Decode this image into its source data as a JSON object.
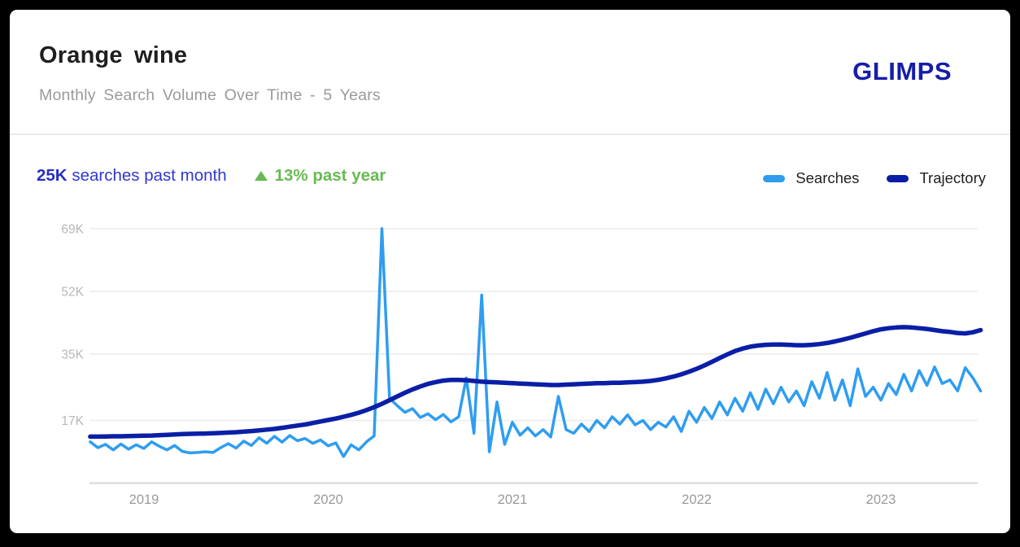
{
  "header": {
    "title": "Orange wine",
    "subtitle": "Monthly Search Volume Over Time - 5 Years",
    "brand": "GLIMPS",
    "brand_color": "#151da9"
  },
  "stats": {
    "volume": "25K",
    "volume_label": "searches past month",
    "volume_color": "#3137cf",
    "change_icon": "triangle-up-icon",
    "change": "13%",
    "change_label": "past year",
    "change_color": "#68ba52"
  },
  "chart_data": {
    "type": "line",
    "title": "Orange wine",
    "subtitle": "Monthly Search Volume Over Time - 5 Years",
    "y_unit": "K searches per month",
    "ylim": [
      0,
      72
    ],
    "grid": "horizontal",
    "legend_position": "top-right",
    "x_start_year": 2018.708,
    "x_step_years": 0.0416667,
    "x_ticks": [
      {
        "year": 2019,
        "label": "2019"
      },
      {
        "year": 2020,
        "label": "2020"
      },
      {
        "year": 2021,
        "label": "2021"
      },
      {
        "year": 2022,
        "label": "2022"
      },
      {
        "year": 2023,
        "label": "2023"
      }
    ],
    "y_ticks": [
      {
        "value": 17,
        "label": "17K"
      },
      {
        "value": 35,
        "label": "35K"
      },
      {
        "value": 52,
        "label": "52K"
      },
      {
        "value": 69,
        "label": "69K"
      }
    ],
    "series": [
      {
        "name": "Searches",
        "color": "#2f9df0",
        "stroke_width": 3.5,
        "values": [
          11.2,
          9.6,
          10.5,
          9.0,
          10.6,
          9.2,
          10.4,
          9.4,
          11.2,
          10.0,
          9.0,
          10.2,
          8.6,
          8.2,
          8.3,
          8.5,
          8.3,
          9.6,
          10.7,
          9.5,
          11.4,
          10.2,
          12.3,
          10.8,
          12.7,
          11.1,
          12.9,
          11.5,
          12.1,
          10.8,
          11.7,
          10.1,
          10.9,
          7.2,
          10.4,
          9.0,
          11.2,
          12.8,
          69.0,
          23.0,
          21.0,
          19.2,
          20.2,
          17.8,
          18.8,
          17.2,
          18.6,
          16.6,
          18.0,
          28.5,
          13.5,
          51.0,
          8.5,
          22.0,
          10.5,
          16.5,
          13.0,
          15.0,
          12.8,
          14.5,
          12.5,
          23.5,
          14.5,
          13.5,
          16.0,
          14.0,
          17.0,
          15.0,
          18.0,
          16.0,
          18.5,
          15.8,
          17.0,
          14.5,
          16.5,
          15.2,
          18.0,
          14.0,
          19.5,
          16.5,
          20.5,
          17.5,
          22.0,
          18.5,
          23.0,
          19.5,
          24.5,
          20.0,
          25.5,
          21.5,
          26.0,
          22.0,
          25.0,
          21.0,
          27.5,
          23.0,
          30.0,
          22.5,
          28.0,
          21.0,
          31.0,
          23.5,
          26.0,
          22.5,
          27.0,
          24.0,
          29.5,
          25.0,
          30.5,
          26.5,
          31.5,
          27.0,
          28.0,
          25.0,
          31.3,
          28.5,
          25.0
        ]
      },
      {
        "name": "Trajectory",
        "color": "#0a1ea6",
        "stroke_width": 5.5,
        "values": [
          12.6,
          12.6,
          12.65,
          12.7,
          12.7,
          12.75,
          12.8,
          12.85,
          12.9,
          13.0,
          13.1,
          13.2,
          13.3,
          13.35,
          13.4,
          13.45,
          13.5,
          13.6,
          13.7,
          13.8,
          13.95,
          14.1,
          14.3,
          14.5,
          14.7,
          15.0,
          15.3,
          15.6,
          15.9,
          16.3,
          16.7,
          17.1,
          17.5,
          18.0,
          18.5,
          19.1,
          19.8,
          20.6,
          21.5,
          22.5,
          23.5,
          24.5,
          25.4,
          26.2,
          26.9,
          27.4,
          27.8,
          28.0,
          28.0,
          27.9,
          27.7,
          27.5,
          27.4,
          27.3,
          27.2,
          27.1,
          27.0,
          26.9,
          26.8,
          26.7,
          26.6,
          26.6,
          26.7,
          26.8,
          26.9,
          27.0,
          27.1,
          27.1,
          27.2,
          27.2,
          27.3,
          27.4,
          27.5,
          27.7,
          28.0,
          28.4,
          28.9,
          29.5,
          30.2,
          31.0,
          31.9,
          32.9,
          33.9,
          34.9,
          35.8,
          36.5,
          37.0,
          37.3,
          37.5,
          37.6,
          37.6,
          37.5,
          37.4,
          37.4,
          37.5,
          37.7,
          38.0,
          38.4,
          38.9,
          39.4,
          40.0,
          40.6,
          41.2,
          41.7,
          42.0,
          42.2,
          42.3,
          42.2,
          42.0,
          41.8,
          41.5,
          41.2,
          41.0,
          40.7,
          40.6,
          40.9,
          41.5
        ]
      }
    ]
  }
}
